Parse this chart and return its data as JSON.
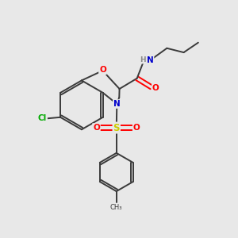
{
  "background_color": "#e8e8e8",
  "bond_color": "#3a3a3a",
  "atom_colors": {
    "O": "#ff0000",
    "N": "#0000cc",
    "Cl": "#00aa00",
    "S": "#cccc00",
    "H": "#888888",
    "C": "#3a3a3a"
  },
  "figsize": [
    3.0,
    3.0
  ],
  "dpi": 100
}
